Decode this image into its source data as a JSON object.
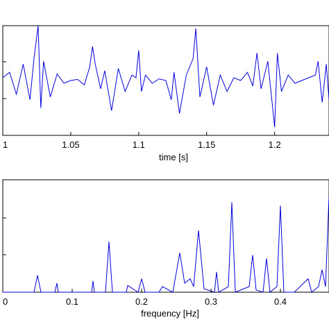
{
  "chart_data": [
    {
      "type": "line",
      "title": "",
      "xlabel": "time [s]",
      "ylabel": "",
      "xlim": [
        1.0,
        1.24
      ],
      "xticks": [
        "1",
        "1.05",
        "1.1",
        "1.15",
        "1.2"
      ],
      "xtick_values": [
        1.0,
        1.05,
        1.1,
        1.15,
        1.2
      ],
      "ylim": [
        -1,
        1
      ],
      "grid": false,
      "series": [
        {
          "color": "#0000dd",
          "x": [
            1.0,
            1.005,
            1.01,
            1.015,
            1.02,
            1.023,
            1.026,
            1.028,
            1.03,
            1.035,
            1.04,
            1.045,
            1.05,
            1.055,
            1.06,
            1.064,
            1.066,
            1.068,
            1.072,
            1.075,
            1.08,
            1.085,
            1.09,
            1.095,
            1.098,
            1.1,
            1.102,
            1.105,
            1.11,
            1.115,
            1.12,
            1.124,
            1.126,
            1.13,
            1.135,
            1.14,
            1.142,
            1.145,
            1.15,
            1.155,
            1.16,
            1.165,
            1.17,
            1.175,
            1.18,
            1.184,
            1.187,
            1.19,
            1.195,
            1.2,
            1.202,
            1.205,
            1.21,
            1.215,
            1.22,
            1.225,
            1.23,
            1.232,
            1.235,
            1.238,
            1.24
          ],
          "y": [
            0.05,
            0.15,
            -0.25,
            0.3,
            -0.35,
            0.4,
            1.0,
            -0.5,
            0.35,
            -0.3,
            0.12,
            -0.05,
            0.0,
            0.02,
            -0.08,
            0.25,
            0.62,
            0.3,
            -0.15,
            0.18,
            -0.55,
            0.22,
            -0.2,
            0.1,
            0.05,
            0.55,
            -0.2,
            0.1,
            -0.05,
            0.03,
            0.0,
            -0.35,
            0.15,
            -0.6,
            0.1,
            0.4,
            0.95,
            -0.3,
            0.25,
            -0.45,
            0.1,
            -0.2,
            0.05,
            0.0,
            0.15,
            -0.1,
            0.5,
            -0.15,
            0.35,
            -0.85,
            0.5,
            -0.2,
            0.1,
            -0.05,
            0.0,
            0.05,
            0.1,
            0.35,
            -0.4,
            0.3,
            -0.35
          ]
        }
      ]
    },
    {
      "type": "line",
      "title": "",
      "xlabel": "frequency [Hz]",
      "ylabel": "",
      "xlim": [
        0,
        0.47
      ],
      "xticks": [
        "0",
        "0.1",
        "0.2",
        "0.3",
        "0.4"
      ],
      "xtick_values": [
        0,
        0.1,
        0.2,
        0.3,
        0.4
      ],
      "ylim": [
        0,
        1
      ],
      "grid": false,
      "series": [
        {
          "color": "#0000dd",
          "x": [
            0.0,
            0.045,
            0.05,
            0.055,
            0.075,
            0.078,
            0.08,
            0.128,
            0.13,
            0.132,
            0.148,
            0.153,
            0.158,
            0.178,
            0.18,
            0.195,
            0.2,
            0.205,
            0.225,
            0.23,
            0.245,
            0.255,
            0.262,
            0.27,
            0.275,
            0.282,
            0.29,
            0.305,
            0.308,
            0.311,
            0.325,
            0.33,
            0.335,
            0.355,
            0.36,
            0.365,
            0.375,
            0.38,
            0.385,
            0.395,
            0.4,
            0.405,
            0.42,
            0.44,
            0.445,
            0.455,
            0.46,
            0.465,
            0.47
          ],
          "y": [
            0.0,
            0.0,
            0.15,
            0.0,
            0.0,
            0.08,
            0.0,
            0.0,
            0.1,
            0.0,
            0.0,
            0.45,
            0.0,
            0.0,
            0.06,
            0.0,
            0.12,
            0.0,
            0.0,
            0.05,
            0.0,
            0.35,
            0.08,
            0.12,
            0.05,
            0.55,
            0.03,
            0.0,
            0.18,
            0.0,
            0.05,
            0.8,
            0.0,
            0.05,
            0.33,
            0.02,
            0.0,
            0.3,
            0.0,
            0.05,
            0.77,
            0.0,
            0.0,
            0.12,
            0.0,
            0.05,
            0.2,
            0.05,
            0.85
          ]
        }
      ]
    }
  ]
}
